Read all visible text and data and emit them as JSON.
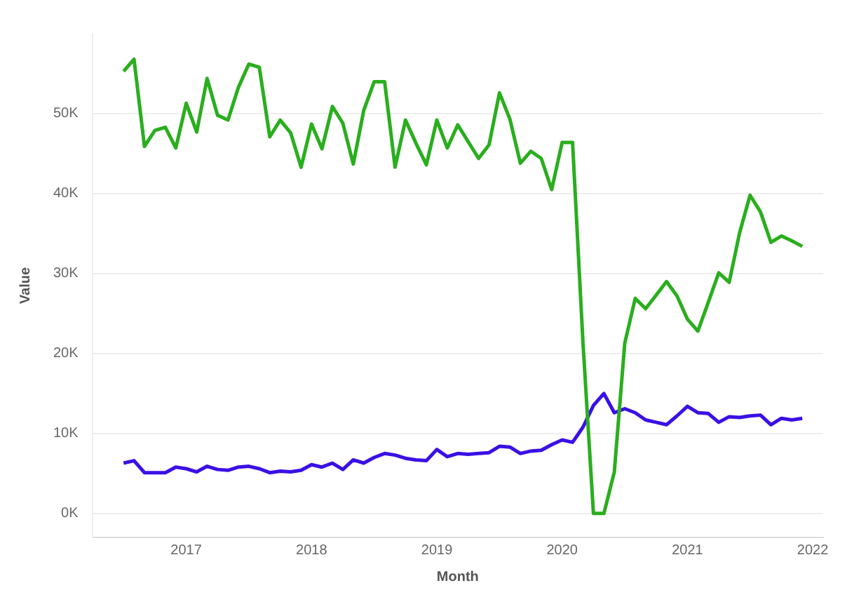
{
  "chart_data": {
    "type": "line",
    "xlabel": "Month",
    "ylabel": "Value",
    "x": [
      "2016-07",
      "2016-08",
      "2016-09",
      "2016-10",
      "2016-11",
      "2016-12",
      "2017-01",
      "2017-02",
      "2017-03",
      "2017-04",
      "2017-05",
      "2017-06",
      "2017-07",
      "2017-08",
      "2017-09",
      "2017-10",
      "2017-11",
      "2017-12",
      "2018-01",
      "2018-02",
      "2018-03",
      "2018-04",
      "2018-05",
      "2018-06",
      "2018-07",
      "2018-08",
      "2018-09",
      "2018-10",
      "2018-11",
      "2018-12",
      "2019-01",
      "2019-02",
      "2019-03",
      "2019-04",
      "2019-05",
      "2019-06",
      "2019-07",
      "2019-08",
      "2019-09",
      "2019-10",
      "2019-11",
      "2019-12",
      "2020-01",
      "2020-02",
      "2020-03",
      "2020-04",
      "2020-05",
      "2020-06",
      "2020-07",
      "2020-08",
      "2020-09",
      "2020-10",
      "2020-11",
      "2020-12",
      "2021-01",
      "2021-02",
      "2021-03",
      "2021-04",
      "2021-05",
      "2021-06",
      "2021-07",
      "2021-08",
      "2021-09",
      "2021-10",
      "2021-11",
      "2021-12"
    ],
    "series": [
      {
        "color": "#2aae1e",
        "values": [
          55300,
          56800,
          45900,
          47900,
          48300,
          45700,
          51300,
          47700,
          54400,
          49800,
          49200,
          53300,
          56200,
          55800,
          47100,
          49200,
          47600,
          43300,
          48700,
          45600,
          50900,
          48800,
          43700,
          50400,
          54000,
          54000,
          43300,
          49200,
          46300,
          43600,
          49200,
          45700,
          48600,
          46500,
          44400,
          46100,
          52600,
          49300,
          43800,
          45300,
          44400,
          40500,
          46400,
          46400,
          21300,
          0,
          0,
          5200,
          21300,
          26900,
          25600,
          27300,
          29000,
          27200,
          24300,
          22800,
          26400,
          30100,
          28900,
          35100,
          39800,
          37700,
          33900,
          34700,
          34100,
          33400
        ]
      },
      {
        "color": "#3a10e6",
        "values": [
          6300,
          6600,
          5100,
          5100,
          5100,
          5800,
          5600,
          5200,
          5900,
          5500,
          5400,
          5800,
          5900,
          5600,
          5100,
          5300,
          5200,
          5400,
          6100,
          5800,
          6300,
          5500,
          6700,
          6300,
          7000,
          7500,
          7300,
          6900,
          6700,
          6600,
          8000,
          7100,
          7500,
          7400,
          7500,
          7600,
          8400,
          8300,
          7500,
          7800,
          7900,
          8600,
          9200,
          8900,
          10800,
          13500,
          15000,
          12600,
          13100,
          12600,
          11700,
          11400,
          11100,
          12200,
          13400,
          12600,
          12500,
          11400,
          12100,
          12000,
          12200,
          12300,
          11100,
          11900,
          11700,
          11900
        ]
      }
    ],
    "xlim": [
      "2016-04",
      "2022-02"
    ],
    "xticks": [
      "2017",
      "2018",
      "2019",
      "2020",
      "2021",
      "2022"
    ],
    "ylim": [
      -3000,
      60000
    ],
    "yticks": [
      {
        "value": 0,
        "label": "0K"
      },
      {
        "value": 10000,
        "label": "10K"
      },
      {
        "value": 20000,
        "label": "20K"
      },
      {
        "value": 30000,
        "label": "30K"
      },
      {
        "value": 40000,
        "label": "40K"
      },
      {
        "value": 50000,
        "label": "50K"
      }
    ],
    "grid": "y",
    "legend": false,
    "marker": "none",
    "line_style": "solid"
  }
}
